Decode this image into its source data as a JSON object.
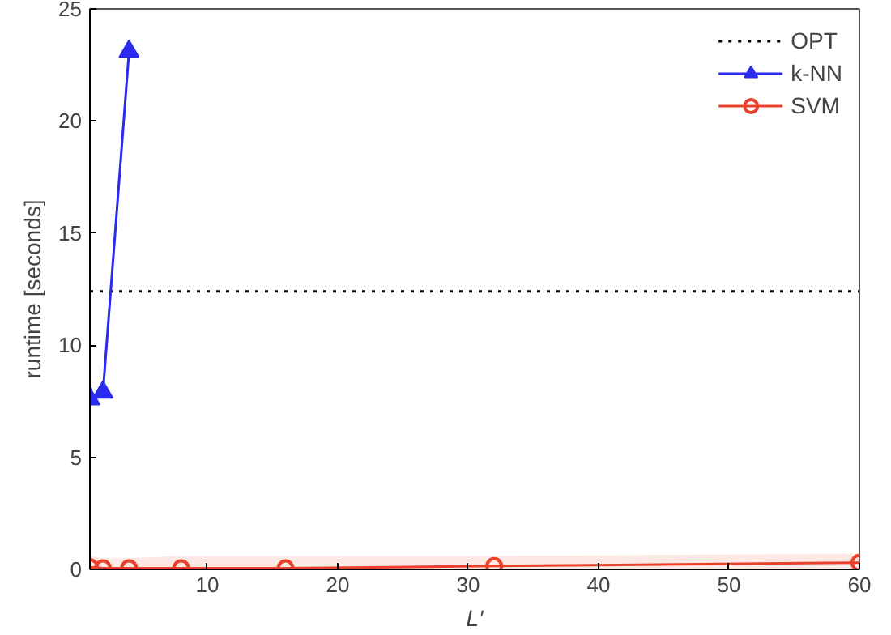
{
  "chart_data": {
    "type": "line",
    "xlabel": "L′",
    "ylabel": "runtime [seconds]",
    "xlim": [
      1,
      60
    ],
    "xticks": [
      10,
      20,
      30,
      40,
      50,
      60
    ],
    "ylim": [
      0,
      25
    ],
    "yticks": [
      0,
      5,
      10,
      15,
      20,
      25
    ],
    "grid": false,
    "legend": "top right",
    "series": [
      {
        "name": "OPT",
        "color": "#000000",
        "x": [
          1,
          60
        ],
        "values": [
          12.4,
          12.4
        ],
        "line_style": "dotted",
        "marker": "none"
      },
      {
        "name": "k-NN",
        "color": "#2b2bf0",
        "x": [
          1,
          2,
          4
        ],
        "values": [
          7.6,
          7.9,
          23.1
        ],
        "line_style": "solid",
        "marker": "triangle"
      },
      {
        "name": "SVM",
        "color": "#e8402a",
        "x": [
          1,
          2,
          4,
          8,
          16,
          32,
          60
        ],
        "values": [
          0.1,
          0.05,
          0.05,
          0.05,
          0.05,
          0.15,
          0.3
        ],
        "lower": [
          0,
          0,
          0,
          0,
          0,
          0,
          0
        ],
        "upper": [
          0.6,
          0.5,
          0.5,
          0.6,
          0.6,
          0.6,
          0.7
        ],
        "line_style": "solid",
        "marker": "circle"
      }
    ]
  }
}
